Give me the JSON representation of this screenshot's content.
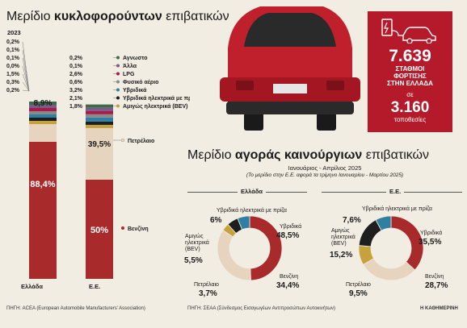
{
  "left_title": {
    "normal": "Μερίδιο ",
    "bold": "κυκλοφορούντων",
    "rest": " επιβατικών"
  },
  "year": "2023",
  "stations": {
    "value": "7.639",
    "line1": "ΣΤΑΘΜΟΙ",
    "line2": "ΦΟΡΤΙΣΗΣ",
    "line3": "ΣΤΗΝ ΕΛΛΑΔΑ",
    "conn": "σε",
    "value2": "3.160",
    "unit": "τοποθεσίες"
  },
  "right_title": {
    "normal": "Μερίδιο ",
    "bold": "αγοράς καινούργιων",
    "rest": " επιβατικών"
  },
  "period": "Ιανουάριος - Απρίλιος 2025",
  "period_note": "(Το μερίδιο στην Ε.Ε. αφορά τα τρίμηνο Ιανουαρίου - Μαρτίου 2025)",
  "source_left": "ΠΗΓΗ: ACEA (European Automobile Manufacturers' Association)",
  "source_right": "ΠΗΓΗ: ΣΕΑΑ (Σύνδεσμος Εισαγωγέων Αντιπροσώπων Αυτοκινήτων)",
  "credit": "Η ΚΑΘΗΜΕΡΙΝΗ",
  "chart_data": [
    {
      "type": "bar",
      "stacked": true,
      "categories": [
        "Ελλάδα",
        "Ε.Ε."
      ],
      "series": [
        {
          "name": "Βενζίνη",
          "color": "#a82a2a",
          "values": [
            88.4,
            50
          ],
          "labels": [
            "88,4%",
            "50%"
          ]
        },
        {
          "name": "Πετρέλαιο",
          "color": "#e6d4bf",
          "values": [
            8.9,
            39.5
          ],
          "labels": [
            "8,9%",
            "39,5%"
          ]
        },
        {
          "name": "Αμιγώς ηλεκτρικά (BEV)",
          "color": "#c6a13c",
          "values": [
            0.2,
            1.8
          ],
          "labels": [
            "0,2%",
            "1,8%"
          ]
        },
        {
          "name": "Υβριδικά ηλεκτρικά με πρίζα",
          "color": "#1e1e1e",
          "values": [
            0.3,
            2.1
          ],
          "labels": [
            "0,3%",
            "2,1%"
          ]
        },
        {
          "name": "Υβριδικά",
          "color": "#2f7fa3",
          "values": [
            1.5,
            3.2
          ],
          "labels": [
            "1,5%",
            "3,2%"
          ]
        },
        {
          "name": "Φυσικό αέριο",
          "color": "#8a8a8a",
          "values": [
            0.0,
            0.6
          ],
          "labels": [
            "0,0%",
            "0,6%"
          ]
        },
        {
          "name": "LPG",
          "color": "#a51c48",
          "values": [
            0.1,
            2.6
          ],
          "labels": [
            "0,1%",
            "2,6%"
          ]
        },
        {
          "name": "Άλλα",
          "color": "#7a5c8a",
          "values": [
            0.1,
            0.1
          ],
          "labels": [
            "0,1%",
            "0,1%"
          ]
        },
        {
          "name": "Αγνωστο",
          "color": "#3f6b4a",
          "values": [
            0.2,
            0.2
          ],
          "labels": [
            "0,2%",
            "0,2%"
          ]
        }
      ],
      "ylim": [
        0,
        100
      ]
    },
    {
      "type": "pie",
      "title": "Ελλάδα",
      "slices": [
        {
          "label": "Υβριδικά",
          "value": 48.5,
          "display": "48,5%",
          "color": "#a82a2a"
        },
        {
          "label": "Βενζίνη",
          "value": 34.4,
          "display": "34,4%",
          "color": "#e6d4bf"
        },
        {
          "label": "Πετρέλαιο",
          "value": 3.7,
          "display": "3,7%",
          "color": "#c6a13c"
        },
        {
          "label": "Αμιγώς ηλεκτρικά (BEV)",
          "value": 5.5,
          "display": "5,5%",
          "color": "#1e1e1e"
        },
        {
          "label": "Υβριδικά ηλεκτρικά με πρίζα",
          "value": 6.0,
          "display": "6%",
          "color": "#2f7fa3"
        }
      ]
    },
    {
      "type": "pie",
      "title": "Ε.Ε.",
      "slices": [
        {
          "label": "Υβριδικά",
          "value": 35.5,
          "display": "35,5%",
          "color": "#a82a2a"
        },
        {
          "label": "Βενζίνη",
          "value": 28.7,
          "display": "28,7%",
          "color": "#e6d4bf"
        },
        {
          "label": "Πετρέλαιο",
          "value": 9.5,
          "display": "9,5%",
          "color": "#c6a13c"
        },
        {
          "label": "Αμιγώς ηλεκτρικά (BEV)",
          "value": 15.2,
          "display": "15,2%",
          "color": "#1e1e1e"
        },
        {
          "label": "Υβριδικά ηλεκτρικά με πρίζα",
          "value": 7.6,
          "display": "7,6%",
          "color": "#2f7fa3"
        }
      ]
    }
  ],
  "donut_label_text": {
    "gr": {
      "hyb": "Υβριδικά",
      "ben": "Βενζίνη",
      "pet": "Πετρέλαιο",
      "bev1": "Αμιγώς",
      "bev2": "ηλεκτρικά",
      "bev3": "(BEV)",
      "phev": "Υβριδικά ηλεκτρικά με πρίζα"
    },
    "eu": {
      "hyb": "Υβριδικά",
      "ben": "Βενζίνη",
      "pet": "Πετρέλαιο",
      "bev1": "Αμιγώς",
      "bev2": "ηλεκτρικά",
      "bev3": "(BEV)",
      "phev": "Υβριδικά ηλεκτρικά με πρίζα"
    }
  }
}
